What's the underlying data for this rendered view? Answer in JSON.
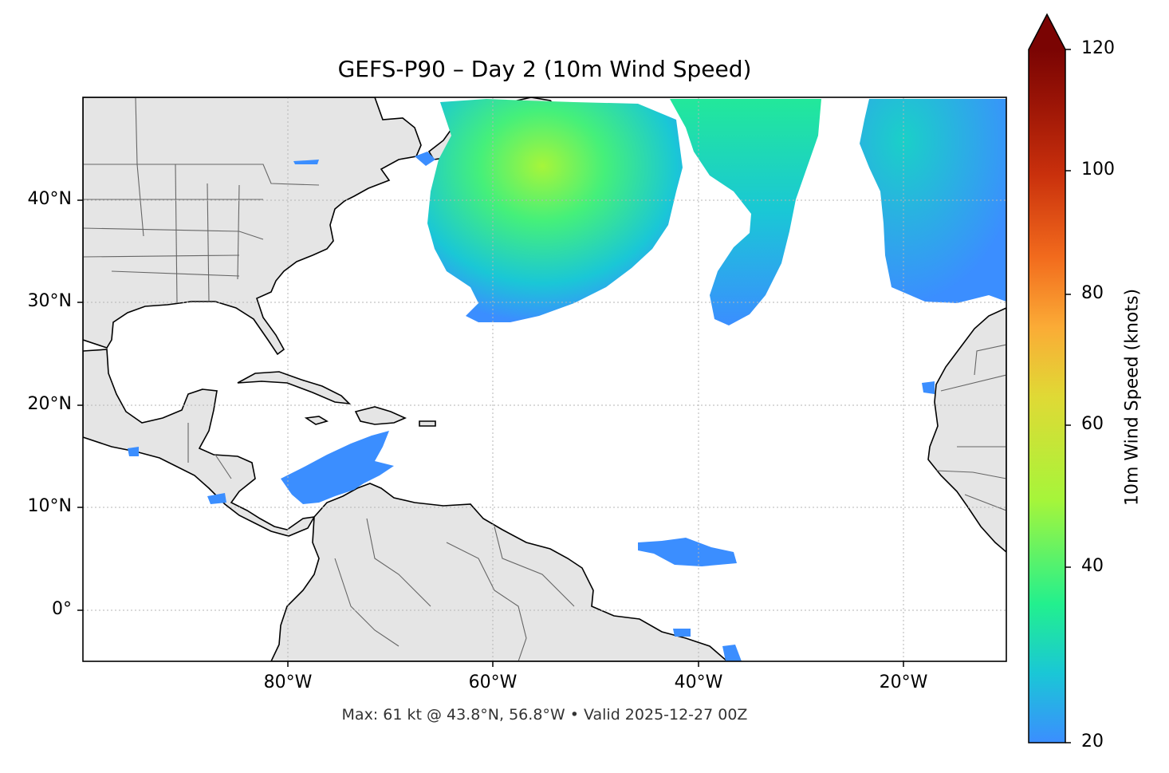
{
  "title": "GEFS-P90 – Day 2 (10m Wind Speed)",
  "footer": "Max: 61 kt @ 43.8°N, 56.8°W • Valid 2025-12-27 00Z",
  "map": {
    "lon_range": [
      -100,
      -10
    ],
    "lat_range": [
      -5,
      50
    ],
    "x_ticks": [
      "80°W",
      "60°W",
      "40°W",
      "20°W"
    ],
    "y_ticks": [
      "40°N",
      "30°N",
      "20°N",
      "10°N",
      "0°"
    ],
    "grid": true,
    "land_color": "#e5e5e5",
    "ocean_color": "#ffffff"
  },
  "colorbar": {
    "label": "10m Wind Speed (knots)",
    "range": [
      20,
      120
    ],
    "ticks": [
      "120",
      "100",
      "80",
      "60",
      "40",
      "20"
    ],
    "extend": "max",
    "colormap": [
      "#3b8eff",
      "#1ac7d6",
      "#22f08e",
      "#a6f53a",
      "#e0d935",
      "#fbab36",
      "#f26b1d",
      "#c9300c",
      "#9c1506",
      "#7a0403"
    ]
  },
  "wind_features": [
    {
      "name": "north-atlantic-storm",
      "peak_kt": 61
    },
    {
      "name": "mid-atlantic-band",
      "peak_kt": 38
    },
    {
      "name": "east-atlantic-low",
      "peak_kt": 33
    },
    {
      "name": "caribbean-jet",
      "peak_kt": 24
    },
    {
      "name": "equatorial-patch",
      "peak_kt": 22
    }
  ]
}
